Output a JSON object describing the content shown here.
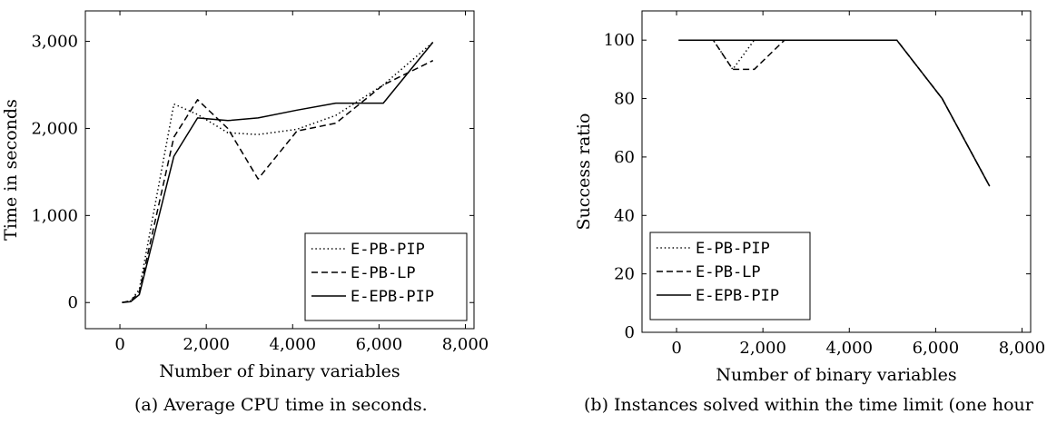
{
  "chart_data": [
    {
      "type": "line",
      "caption": "(a) Average CPU time in seconds.",
      "xlabel": "Number of binary variables",
      "ylabel": "Time in seconds",
      "xlim": [
        -800,
        8200
      ],
      "ylim": [
        -300,
        3350
      ],
      "xticks": [
        0,
        2000,
        4000,
        6000,
        8000
      ],
      "xtick_labels": [
        "0",
        "2,000",
        "4,000",
        "6,000",
        "8,000"
      ],
      "yticks": [
        0,
        1000,
        2000,
        3000
      ],
      "ytick_labels": [
        "0",
        "1,000",
        "2,000",
        "3,000"
      ],
      "legend_position": "bottom-right",
      "grid": false,
      "series": [
        {
          "name": "E-PB-PIP",
          "dash": "dotted",
          "x": [
            50,
            250,
            450,
            1250,
            1800,
            2500,
            3200,
            4100,
            5000,
            6100,
            7250
          ],
          "y": [
            0,
            20,
            150,
            2280,
            2160,
            1950,
            1930,
            1990,
            2150,
            2500,
            2990
          ]
        },
        {
          "name": "E-PB-LP",
          "dash": "dashed",
          "x": [
            50,
            250,
            450,
            1250,
            1800,
            2500,
            3200,
            4100,
            5000,
            6100,
            7250
          ],
          "y": [
            0,
            20,
            120,
            1900,
            2330,
            2000,
            1420,
            1970,
            2060,
            2500,
            2780
          ]
        },
        {
          "name": "E-EPB-PIP",
          "dash": "solid",
          "x": [
            50,
            250,
            450,
            1250,
            1800,
            2500,
            3200,
            4100,
            5000,
            6100,
            7250
          ],
          "y": [
            0,
            10,
            90,
            1680,
            2120,
            2090,
            2120,
            2210,
            2290,
            2290,
            2990
          ]
        }
      ]
    },
    {
      "type": "line",
      "caption": "(b) Instances solved within the time limit (one hour",
      "xlabel": "Number of binary variables",
      "ylabel": "Success ratio",
      "xlim": [
        -800,
        8200
      ],
      "ylim": [
        0,
        110
      ],
      "xticks": [
        0,
        2000,
        4000,
        6000,
        8000
      ],
      "xtick_labels": [
        "0",
        "2,000",
        "4,000",
        "6,000",
        "8,000"
      ],
      "yticks": [
        0,
        20,
        40,
        60,
        80,
        100
      ],
      "ytick_labels": [
        "0",
        "20",
        "40",
        "60",
        "80",
        "100"
      ],
      "legend_position": "bottom-left",
      "grid": false,
      "series": [
        {
          "name": "E-PB-PIP",
          "dash": "dotted",
          "x": [
            50,
            850,
            1300,
            1800,
            2500,
            5100,
            6150,
            7250
          ],
          "y": [
            100,
            100,
            90,
            100,
            100,
            100,
            80,
            50
          ]
        },
        {
          "name": "E-PB-LP",
          "dash": "dashed",
          "x": [
            50,
            850,
            1300,
            1800,
            2500,
            5100,
            6150,
            7250
          ],
          "y": [
            100,
            100,
            90,
            90,
            100,
            100,
            80,
            50
          ]
        },
        {
          "name": "E-EPB-PIP",
          "dash": "solid",
          "x": [
            50,
            850,
            1300,
            1800,
            2500,
            5100,
            6150,
            7250
          ],
          "y": [
            100,
            100,
            100,
            100,
            100,
            100,
            80,
            50
          ]
        }
      ]
    }
  ]
}
